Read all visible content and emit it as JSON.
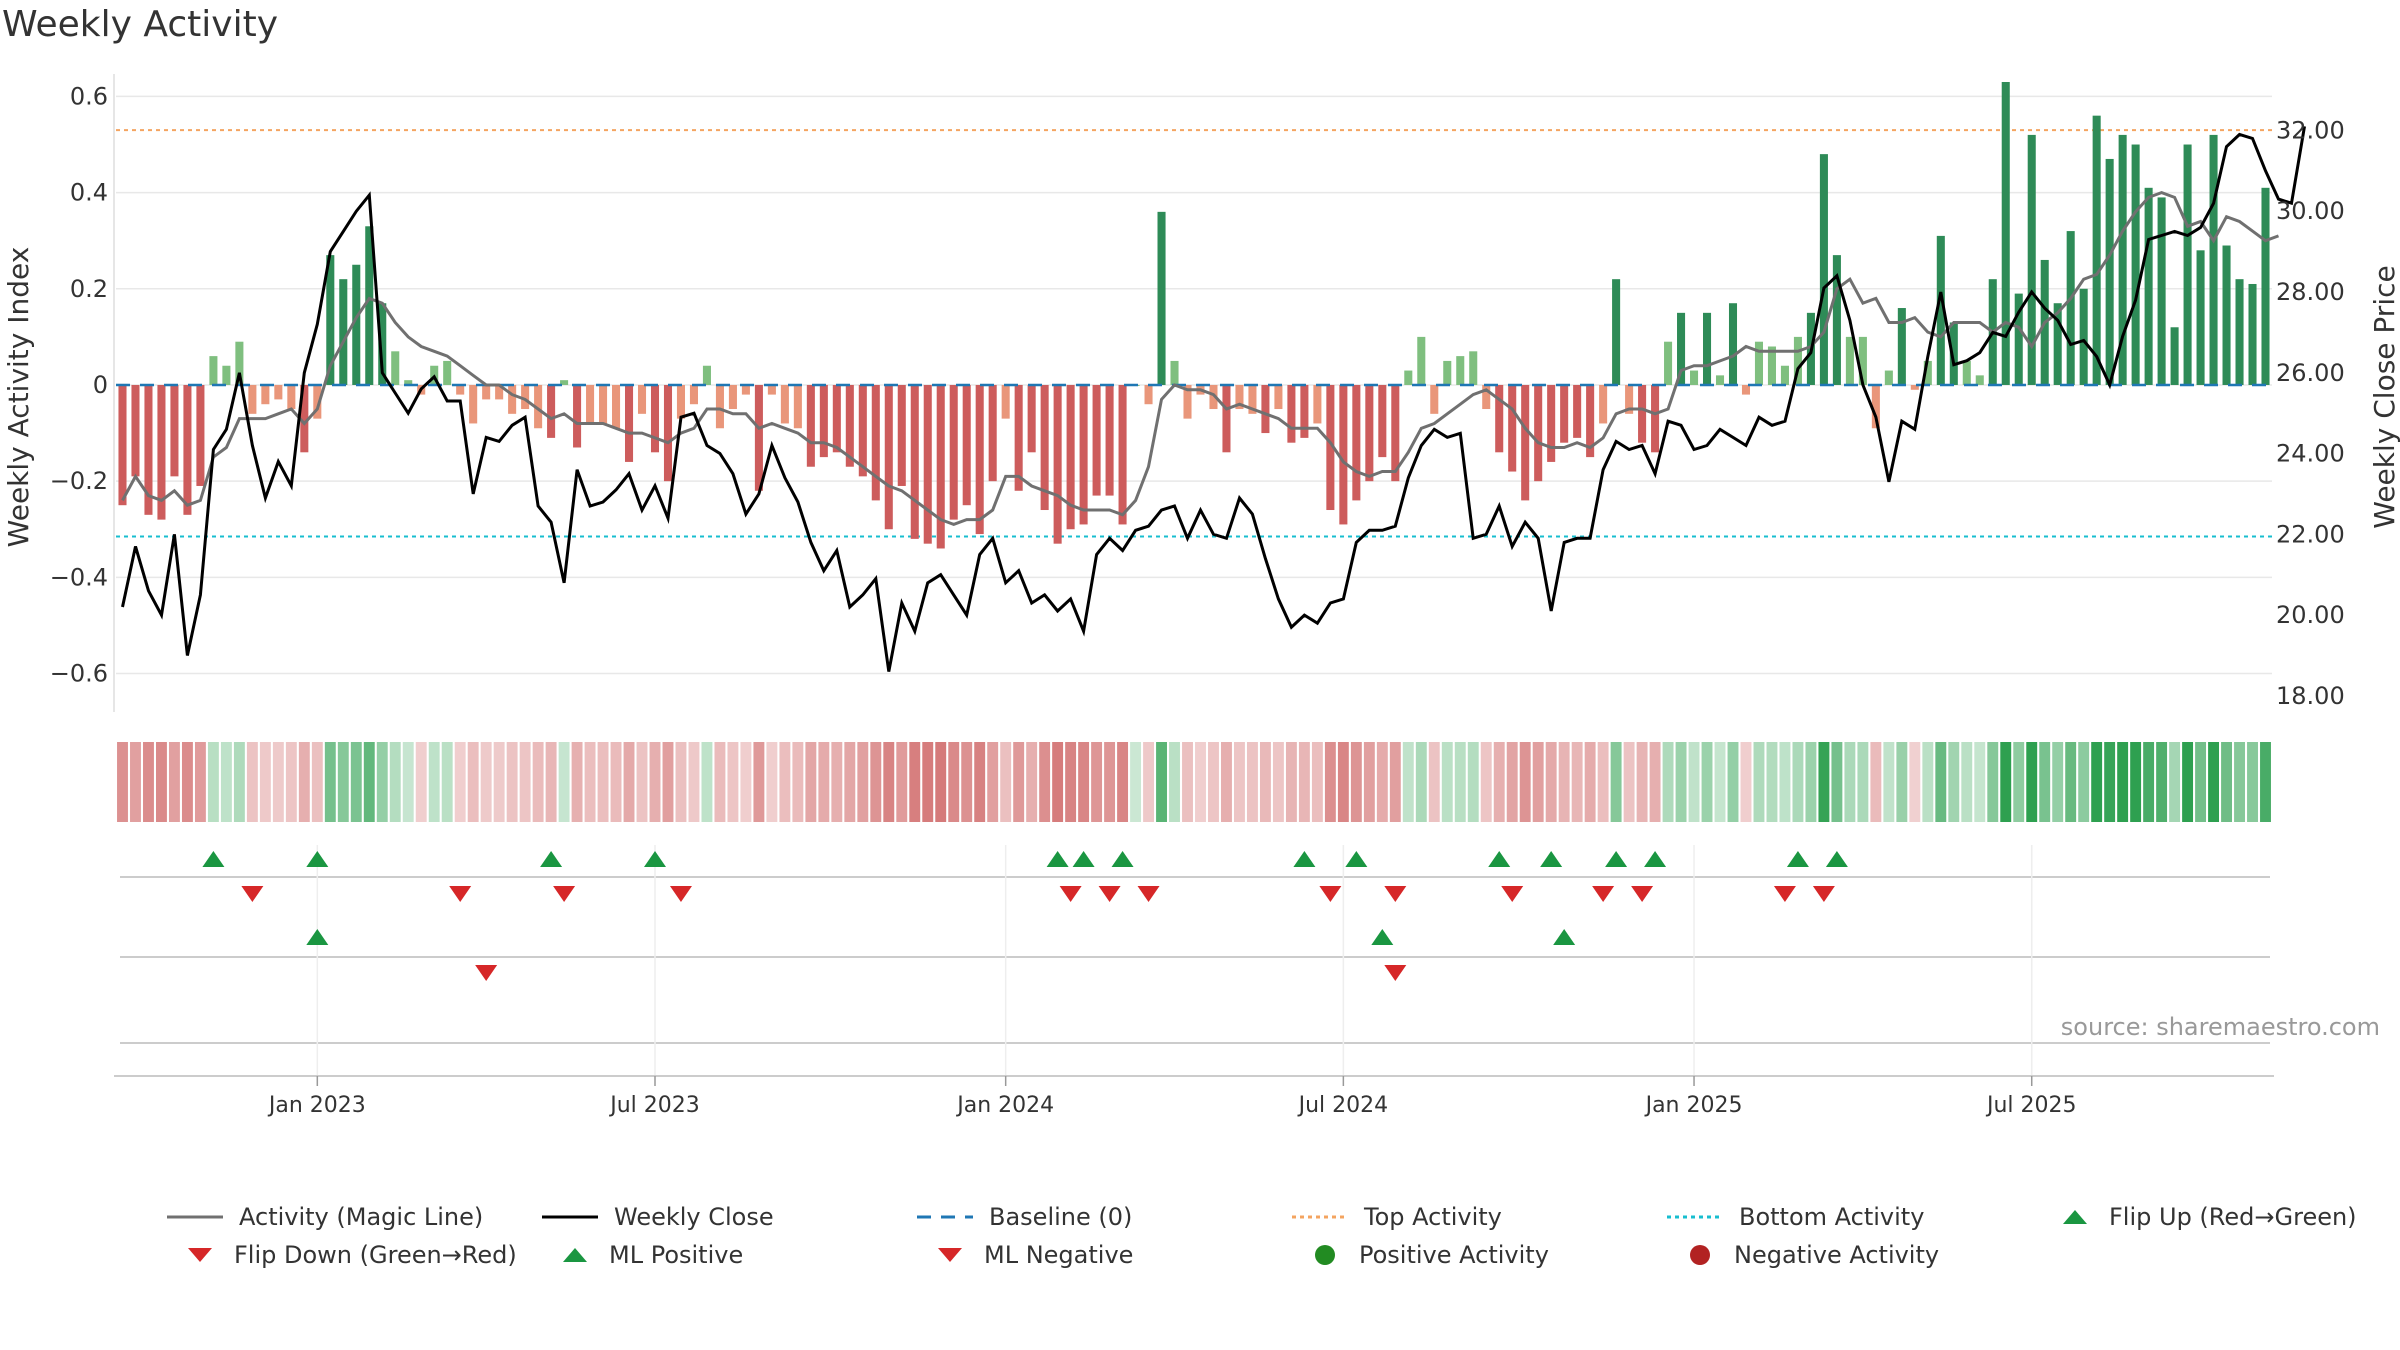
{
  "title": "Weekly Activity",
  "source": "source: sharemaestro.com",
  "colors": {
    "pos_strong": "#2e8b57",
    "pos_light": "#7fbf7f",
    "neg_strong": "#cd5c5c",
    "neg_light": "#e9967a",
    "magic_line": "#707070",
    "close_line": "#000000",
    "baseline": "#1f77b4",
    "top_activity": "#f4a460",
    "bottom_activity": "#17becf",
    "flip_up": "#1a9641",
    "flip_down": "#d62728",
    "pos_dot": "#228b22",
    "neg_dot": "#b22222"
  },
  "chart_data": {
    "type": "bar+line",
    "title": "Weekly Activity",
    "ylabel": "Weekly Activity Index",
    "y2label": "Weekly Close Price",
    "ylim": [
      -0.68,
      0.63
    ],
    "y2lim": [
      17.6,
      33.2
    ],
    "yticks": [
      -0.6,
      -0.4,
      -0.2,
      0,
      0.2,
      0.4,
      0.6
    ],
    "ytick_labels": [
      "−0.6",
      "−0.4",
      "−0.2",
      "0",
      "0.2",
      "0.4",
      "0.6"
    ],
    "y2ticks": [
      18,
      20,
      22,
      24,
      26,
      28,
      30,
      32
    ],
    "y2tick_labels": [
      "18.00",
      "20.00",
      "22.00",
      "24.00",
      "26.00",
      "28.00",
      "30.00",
      "32.00"
    ],
    "xticks": [
      "Jan 2023",
      "Jul 2023",
      "Jan 2024",
      "Jul 2024",
      "Jan 2025",
      "Jul 2025"
    ],
    "xtick_index": [
      15,
      41,
      68,
      94,
      121,
      147
    ],
    "start": "2022-10-21",
    "top_activity": 0.53,
    "bottom_activity": -0.315,
    "baseline": 0,
    "activity": [
      -0.25,
      -0.19,
      -0.27,
      -0.28,
      -0.19,
      -0.27,
      -0.21,
      0.06,
      0.04,
      0.09,
      -0.06,
      -0.04,
      -0.03,
      -0.05,
      -0.14,
      -0.07,
      0.27,
      0.22,
      0.25,
      0.33,
      0.17,
      0.07,
      0.01,
      -0.02,
      0.04,
      0.05,
      -0.02,
      -0.08,
      -0.03,
      -0.03,
      -0.06,
      -0.05,
      -0.09,
      -0.11,
      0.01,
      -0.13,
      -0.08,
      -0.08,
      -0.09,
      -0.16,
      -0.06,
      -0.14,
      -0.2,
      -0.07,
      -0.04,
      0.04,
      -0.09,
      -0.05,
      -0.02,
      -0.22,
      -0.02,
      -0.08,
      -0.09,
      -0.17,
      -0.15,
      -0.14,
      -0.17,
      -0.19,
      -0.24,
      -0.3,
      -0.21,
      -0.32,
      -0.33,
      -0.34,
      -0.28,
      -0.25,
      -0.31,
      -0.2,
      -0.07,
      -0.22,
      -0.14,
      -0.26,
      -0.33,
      -0.3,
      -0.29,
      -0.23,
      -0.23,
      -0.29,
      0.0,
      -0.04,
      0.36,
      0.05,
      -0.07,
      -0.02,
      -0.05,
      -0.14,
      -0.05,
      -0.06,
      -0.1,
      -0.05,
      -0.12,
      -0.11,
      -0.08,
      -0.26,
      -0.29,
      -0.24,
      -0.2,
      -0.15,
      -0.2,
      0.03,
      0.1,
      -0.06,
      0.05,
      0.06,
      0.07,
      -0.05,
      -0.14,
      -0.18,
      -0.24,
      -0.2,
      -0.16,
      -0.12,
      -0.11,
      -0.15,
      -0.08,
      0.22,
      -0.06,
      -0.12,
      -0.14,
      0.09,
      0.15,
      0.03,
      0.15,
      0.02,
      0.17,
      -0.02,
      0.09,
      0.08,
      0.04,
      0.1,
      0.15,
      0.48,
      0.27,
      0.1,
      0.1,
      -0.09,
      0.03,
      0.16,
      -0.01,
      0.05,
      0.31,
      0.13,
      0.05,
      0.02,
      0.22,
      0.63,
      0.19,
      0.52,
      0.26,
      0.17,
      0.32,
      0.2,
      0.56,
      0.47,
      0.52,
      0.5,
      0.41,
      0.39,
      0.12,
      0.5,
      0.28,
      0.52,
      0.29,
      0.22,
      0.21,
      0.41
    ],
    "magic_line": [
      -0.24,
      -0.19,
      -0.23,
      -0.24,
      -0.22,
      -0.25,
      -0.24,
      -0.15,
      -0.13,
      -0.07,
      -0.07,
      -0.07,
      -0.06,
      -0.05,
      -0.08,
      -0.05,
      0.04,
      0.09,
      0.14,
      0.18,
      0.17,
      0.13,
      0.1,
      0.08,
      0.07,
      0.06,
      0.04,
      0.02,
      0.0,
      0.0,
      -0.02,
      -0.03,
      -0.05,
      -0.07,
      -0.06,
      -0.08,
      -0.08,
      -0.08,
      -0.09,
      -0.1,
      -0.1,
      -0.11,
      -0.12,
      -0.1,
      -0.09,
      -0.05,
      -0.05,
      -0.06,
      -0.06,
      -0.09,
      -0.08,
      -0.09,
      -0.1,
      -0.12,
      -0.12,
      -0.13,
      -0.15,
      -0.17,
      -0.19,
      -0.21,
      -0.22,
      -0.24,
      -0.26,
      -0.28,
      -0.29,
      -0.28,
      -0.28,
      -0.26,
      -0.19,
      -0.19,
      -0.21,
      -0.22,
      -0.23,
      -0.25,
      -0.26,
      -0.26,
      -0.26,
      -0.27,
      -0.24,
      -0.17,
      -0.03,
      0.0,
      -0.01,
      -0.01,
      -0.02,
      -0.05,
      -0.04,
      -0.05,
      -0.06,
      -0.07,
      -0.09,
      -0.09,
      -0.09,
      -0.12,
      -0.16,
      -0.18,
      -0.19,
      -0.18,
      -0.18,
      -0.14,
      -0.09,
      -0.08,
      -0.06,
      -0.04,
      -0.02,
      -0.01,
      -0.03,
      -0.05,
      -0.09,
      -0.12,
      -0.13,
      -0.13,
      -0.12,
      -0.13,
      -0.11,
      -0.06,
      -0.05,
      -0.05,
      -0.06,
      -0.05,
      0.03,
      0.04,
      0.04,
      0.05,
      0.06,
      0.08,
      0.07,
      0.07,
      0.07,
      0.07,
      0.08,
      0.11,
      0.2,
      0.22,
      0.17,
      0.18,
      0.13,
      0.13,
      0.14,
      0.11,
      0.1,
      0.13,
      0.13,
      0.13,
      0.11,
      0.13,
      0.12,
      0.08,
      0.13,
      0.15,
      0.18,
      0.22,
      0.23,
      0.27,
      0.32,
      0.36,
      0.39,
      0.4,
      0.39,
      0.33,
      0.34,
      0.3,
      0.35,
      0.34,
      0.32,
      0.3,
      0.31
    ],
    "weekly_close": [
      20.2,
      21.7,
      20.6,
      20.0,
      22.0,
      19.0,
      20.5,
      24.1,
      24.6,
      26.0,
      24.2,
      22.9,
      23.8,
      23.2,
      26.0,
      27.2,
      29.0,
      29.5,
      30.0,
      30.4,
      26.0,
      25.5,
      25.0,
      25.6,
      25.9,
      25.3,
      25.3,
      23.0,
      24.4,
      24.3,
      24.7,
      24.9,
      22.7,
      22.3,
      20.8,
      23.6,
      22.7,
      22.8,
      23.1,
      23.5,
      22.6,
      23.2,
      22.4,
      24.9,
      25.0,
      24.2,
      24.0,
      23.5,
      22.5,
      23.0,
      24.2,
      23.4,
      22.8,
      21.8,
      21.1,
      21.6,
      20.2,
      20.5,
      20.9,
      18.6,
      20.3,
      19.6,
      20.8,
      21.0,
      20.5,
      20.0,
      21.5,
      21.9,
      20.8,
      21.1,
      20.3,
      20.5,
      20.1,
      20.4,
      19.6,
      21.5,
      21.9,
      21.6,
      22.1,
      22.2,
      22.6,
      22.7,
      21.9,
      22.6,
      22.0,
      21.9,
      22.9,
      22.5,
      21.4,
      20.4,
      19.7,
      20.0,
      19.8,
      20.3,
      20.4,
      21.8,
      22.1,
      22.1,
      22.2,
      23.4,
      24.2,
      24.6,
      24.4,
      24.5,
      21.9,
      22.0,
      22.7,
      21.7,
      22.3,
      21.9,
      20.1,
      21.8,
      21.9,
      21.9,
      23.6,
      24.3,
      24.1,
      24.2,
      23.5,
      24.8,
      24.7,
      24.1,
      24.2,
      24.6,
      24.4,
      24.2,
      24.9,
      24.7,
      24.8,
      26.1,
      26.5,
      28.1,
      28.4,
      27.3,
      25.7,
      24.9,
      23.3,
      24.8,
      24.6,
      26.4,
      28.0,
      26.2,
      26.3,
      26.5,
      27.0,
      26.9,
      27.5,
      28.0,
      27.6,
      27.3,
      26.7,
      26.8,
      26.4,
      25.7,
      26.9,
      27.8,
      29.3,
      29.4,
      29.5,
      29.4,
      29.6,
      30.2,
      31.6,
      31.9,
      31.8,
      31.0,
      30.3,
      30.2,
      32.1
    ],
    "flip_up_row1": [
      7,
      15,
      33,
      41,
      72,
      74,
      77,
      91,
      95,
      106,
      110,
      115,
      118,
      129,
      132
    ],
    "flip_down_row1": [
      10,
      26,
      34,
      43,
      73,
      76,
      79,
      93,
      98,
      107,
      114,
      117,
      128,
      131
    ],
    "ml_pos_row2": [
      15,
      97,
      111
    ],
    "ml_neg_row2": [
      28,
      98
    ]
  },
  "legend": [
    {
      "label": "Activity (Magic Line)",
      "icon": "solid-line-icon"
    },
    {
      "label": "Weekly Close",
      "icon": "solid-line-icon"
    },
    {
      "label": "Baseline (0)",
      "icon": "dashed-line-icon"
    },
    {
      "label": "Top Activity",
      "icon": "dotted-line-icon"
    },
    {
      "label": "Bottom Activity",
      "icon": "dotted-line-icon"
    },
    {
      "label": "Flip Up (Red→Green)",
      "icon": "triangle-up-icon"
    },
    {
      "label": "Flip Down (Green→Red)",
      "icon": "triangle-down-icon"
    },
    {
      "label": "ML Positive",
      "icon": "triangle-up-icon"
    },
    {
      "label": "ML Negative",
      "icon": "triangle-down-icon"
    },
    {
      "label": "Positive Activity",
      "icon": "circle-icon"
    },
    {
      "label": "Negative Activity",
      "icon": "circle-icon"
    }
  ]
}
